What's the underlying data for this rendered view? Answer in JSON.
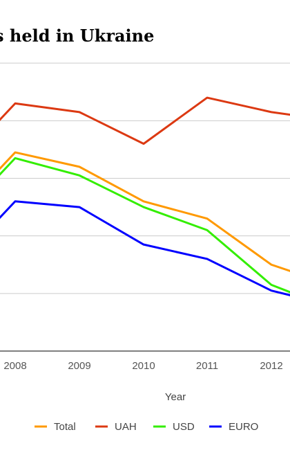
{
  "chart_data": {
    "type": "line",
    "title": "s held in Ukraine",
    "xlabel": "Year",
    "ylabel": "",
    "categories": [
      "2008",
      "2009",
      "2010",
      "2011",
      "2012"
    ],
    "ylim": [
      0,
      6
    ],
    "grid": true,
    "legend_position": "bottom",
    "series": [
      {
        "name": "Total",
        "color": "#ff9900",
        "values": [
          3.45,
          3.2,
          2.6,
          2.3,
          1.5
        ]
      },
      {
        "name": "UAH",
        "color": "#dc3912",
        "values": [
          4.3,
          4.15,
          3.6,
          4.4,
          4.15
        ]
      },
      {
        "name": "USD",
        "color": "#33ee00",
        "values": [
          3.35,
          3.05,
          2.5,
          2.1,
          1.15
        ]
      },
      {
        "name": "EURO",
        "color": "#0000ff",
        "values": [
          2.6,
          2.5,
          1.85,
          1.6,
          1.05
        ]
      }
    ]
  }
}
